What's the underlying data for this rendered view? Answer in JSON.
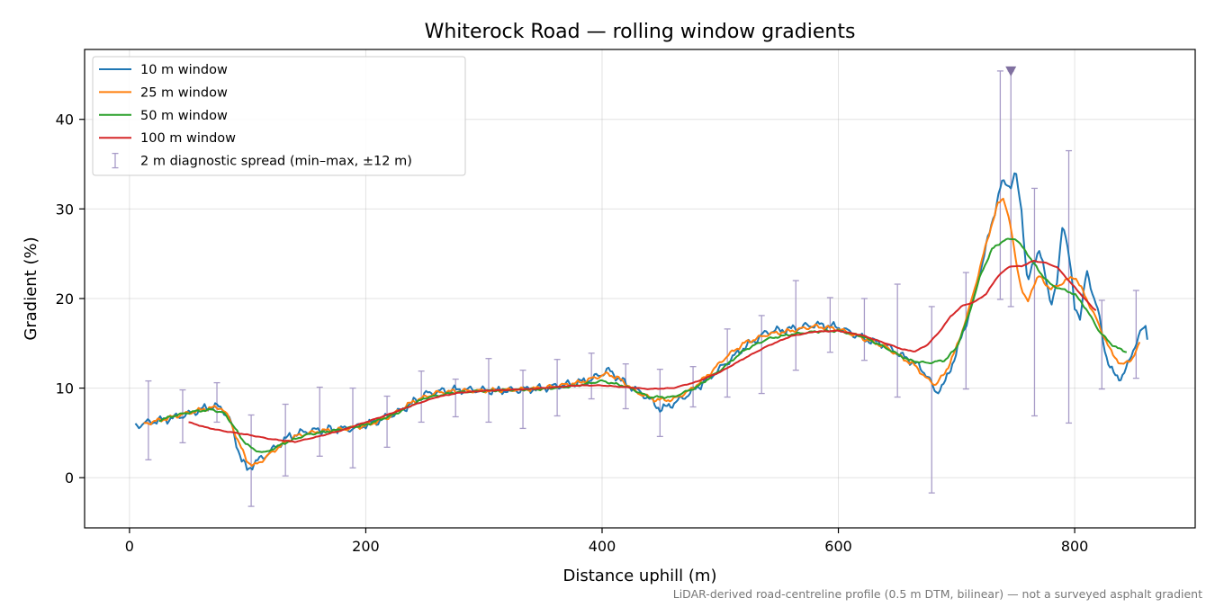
{
  "chart_data": {
    "type": "line",
    "title": "Whiterock Road — rolling window gradients",
    "xlabel": "Distance uphill (m)",
    "ylabel": "Gradient (%)",
    "xlim": [
      -38,
      902
    ],
    "ylim": [
      -5.6,
      47.8
    ],
    "x_ticks": [
      0,
      200,
      400,
      600,
      800
    ],
    "y_ticks": [
      0,
      10,
      20,
      30,
      40
    ],
    "grid": true,
    "legend_position": "upper-left",
    "footnote": "LiDAR-derived road-centreline profile (0.5 m DTM, bilinear) — not a surveyed asphalt gradient",
    "marker": {
      "x": 746,
      "y": 45.4,
      "symbol": "triangle-down",
      "color": "#8070a0"
    },
    "series": [
      {
        "name": "10 m window",
        "color": "#1f77b4",
        "noise": 0.55,
        "x": [
          5,
          20,
          35,
          50,
          60,
          70,
          78,
          85,
          90,
          95,
          100,
          105,
          110,
          120,
          135,
          150,
          170,
          190,
          210,
          230,
          250,
          270,
          290,
          310,
          330,
          350,
          370,
          390,
          405,
          420,
          435,
          450,
          465,
          480,
          500,
          520,
          540,
          560,
          580,
          600,
          620,
          640,
          655,
          665,
          675,
          682,
          690,
          700,
          710,
          720,
          730,
          738,
          742,
          746,
          750,
          755,
          760,
          765,
          770,
          775,
          780,
          785,
          790,
          795,
          800,
          805,
          810,
          815,
          820,
          825,
          830,
          835,
          840,
          845,
          850,
          855,
          860,
          862
        ],
        "y": [
          5.8,
          6.3,
          6.6,
          7.1,
          7.6,
          8.0,
          7.8,
          6.5,
          4.0,
          2.0,
          0.8,
          1.6,
          2.0,
          3.0,
          4.6,
          5.2,
          5.4,
          5.5,
          6.3,
          7.5,
          9.3,
          9.8,
          9.8,
          9.7,
          9.8,
          10.0,
          10.4,
          10.9,
          12.0,
          10.5,
          9.3,
          7.6,
          8.6,
          10.0,
          12.2,
          14.5,
          16.3,
          16.6,
          17.1,
          16.8,
          15.6,
          14.8,
          13.5,
          12.8,
          11.5,
          9.5,
          10.5,
          14.0,
          18.0,
          23.0,
          28.5,
          32.8,
          33.0,
          32.5,
          34.0,
          30.0,
          21.5,
          24.0,
          25.5,
          22.5,
          19.5,
          21.5,
          28.8,
          25.0,
          19.0,
          18.0,
          23.0,
          20.8,
          18.5,
          14.5,
          12.3,
          11.2,
          11.3,
          12.5,
          14.5,
          16.0,
          16.9,
          15.3
        ]
      },
      {
        "name": "25 m window",
        "color": "#ff7f0e",
        "noise": 0.3,
        "x": [
          12,
          25,
          40,
          55,
          68,
          78,
          85,
          92,
          100,
          105,
          112,
          125,
          140,
          160,
          180,
          200,
          220,
          240,
          260,
          280,
          300,
          320,
          340,
          360,
          380,
          395,
          405,
          415,
          430,
          445,
          460,
          475,
          490,
          505,
          520,
          540,
          560,
          580,
          600,
          620,
          640,
          655,
          665,
          675,
          682,
          690,
          700,
          710,
          720,
          728,
          735,
          740,
          745,
          750,
          755,
          760,
          765,
          770,
          780,
          790,
          800,
          810,
          820,
          830,
          840,
          850,
          855
        ],
        "y": [
          6.0,
          6.4,
          6.9,
          7.4,
          7.8,
          7.8,
          6.5,
          4.0,
          1.8,
          1.3,
          1.9,
          3.3,
          4.6,
          5.2,
          5.4,
          5.8,
          6.8,
          8.5,
          9.5,
          9.7,
          9.7,
          9.8,
          9.9,
          10.2,
          10.6,
          11.2,
          11.6,
          11.0,
          9.5,
          8.7,
          8.7,
          9.8,
          11.5,
          13.5,
          15.0,
          16.0,
          16.4,
          16.9,
          16.6,
          15.6,
          14.6,
          13.3,
          12.5,
          11.0,
          10.4,
          11.6,
          14.5,
          18.5,
          23.5,
          27.5,
          30.5,
          31.3,
          28.5,
          24.5,
          21.0,
          19.5,
          21.5,
          22.5,
          21.0,
          21.8,
          22.5,
          20.0,
          17.2,
          14.2,
          12.5,
          13.5,
          15.0
        ]
      },
      {
        "name": "50 m window",
        "color": "#2ca02c",
        "noise": 0.15,
        "x": [
          25,
          40,
          55,
          70,
          80,
          88,
          95,
          105,
          115,
          130,
          150,
          175,
          200,
          225,
          250,
          275,
          300,
          325,
          350,
          375,
          400,
          420,
          440,
          460,
          480,
          500,
          520,
          540,
          560,
          580,
          600,
          620,
          640,
          660,
          675,
          690,
          700,
          710,
          720,
          730,
          740,
          750,
          760,
          770,
          780,
          790,
          800,
          810,
          820,
          830,
          840,
          845
        ],
        "y": [
          6.4,
          7.0,
          7.4,
          7.6,
          7.2,
          5.8,
          4.3,
          3.1,
          2.8,
          3.8,
          4.8,
          5.3,
          5.9,
          7.1,
          8.9,
          9.5,
          9.7,
          9.8,
          9.9,
          10.2,
          10.8,
          10.2,
          9.0,
          9.0,
          10.1,
          12.0,
          14.2,
          15.5,
          16.0,
          16.3,
          16.4,
          15.8,
          14.5,
          13.1,
          12.8,
          13.1,
          14.5,
          18.0,
          22.5,
          25.5,
          26.5,
          26.7,
          25.0,
          23.0,
          21.5,
          21.0,
          20.5,
          18.8,
          16.5,
          15.0,
          14.2,
          14.0
        ]
      },
      {
        "name": "100 m window",
        "color": "#d62728",
        "noise": 0.05,
        "x": [
          50,
          65,
          80,
          100,
          120,
          140,
          160,
          180,
          200,
          220,
          240,
          260,
          280,
          300,
          320,
          340,
          360,
          380,
          400,
          420,
          440,
          460,
          480,
          500,
          520,
          540,
          560,
          580,
          600,
          620,
          640,
          655,
          665,
          675,
          685,
          695,
          705,
          715,
          725,
          735,
          745,
          755,
          765,
          775,
          785,
          795,
          805,
          815,
          818
        ],
        "y": [
          6.2,
          5.6,
          5.2,
          4.8,
          4.3,
          4.0,
          4.6,
          5.3,
          6.2,
          7.1,
          8.1,
          9.0,
          9.5,
          9.7,
          9.8,
          9.9,
          10.1,
          10.3,
          10.3,
          10.1,
          9.9,
          10.0,
          10.7,
          11.8,
          13.3,
          14.7,
          15.8,
          16.3,
          16.4,
          15.9,
          15.0,
          14.3,
          14.1,
          14.8,
          16.2,
          18.0,
          19.2,
          19.6,
          20.5,
          22.5,
          23.6,
          23.6,
          24.2,
          24.0,
          23.5,
          22.0,
          20.5,
          19.0,
          18.7
        ]
      }
    ],
    "errorbars": {
      "name": "2 m diagnostic spread (min–max, ±12 m)",
      "color": "#a89cc8",
      "points": [
        {
          "x": 16,
          "lo": 2.0,
          "hi": 10.8
        },
        {
          "x": 45,
          "lo": 3.9,
          "hi": 9.8
        },
        {
          "x": 74,
          "lo": 6.2,
          "hi": 10.6
        },
        {
          "x": 103,
          "lo": -3.2,
          "hi": 7.0
        },
        {
          "x": 132,
          "lo": 0.2,
          "hi": 8.2
        },
        {
          "x": 161,
          "lo": 2.4,
          "hi": 10.1
        },
        {
          "x": 189,
          "lo": 1.1,
          "hi": 10.0
        },
        {
          "x": 218,
          "lo": 3.4,
          "hi": 9.1
        },
        {
          "x": 247,
          "lo": 6.2,
          "hi": 11.9
        },
        {
          "x": 276,
          "lo": 6.8,
          "hi": 11.0
        },
        {
          "x": 304,
          "lo": 6.2,
          "hi": 13.3
        },
        {
          "x": 333,
          "lo": 5.5,
          "hi": 12.0
        },
        {
          "x": 362,
          "lo": 6.9,
          "hi": 13.2
        },
        {
          "x": 391,
          "lo": 8.8,
          "hi": 13.9
        },
        {
          "x": 420,
          "lo": 7.7,
          "hi": 12.7
        },
        {
          "x": 449,
          "lo": 4.6,
          "hi": 12.1
        },
        {
          "x": 477,
          "lo": 7.9,
          "hi": 12.4
        },
        {
          "x": 506,
          "lo": 9.0,
          "hi": 16.6
        },
        {
          "x": 535,
          "lo": 9.4,
          "hi": 18.1
        },
        {
          "x": 564,
          "lo": 12.0,
          "hi": 22.0
        },
        {
          "x": 593,
          "lo": 14.0,
          "hi": 20.1
        },
        {
          "x": 622,
          "lo": 13.1,
          "hi": 20.0
        },
        {
          "x": 650,
          "lo": 9.0,
          "hi": 21.6
        },
        {
          "x": 679,
          "lo": -1.7,
          "hi": 19.1
        },
        {
          "x": 708,
          "lo": 9.9,
          "hi": 22.9
        },
        {
          "x": 737,
          "lo": 19.9,
          "hi": 45.4
        },
        {
          "x": 746,
          "lo": 19.1,
          "hi": 45.4
        },
        {
          "x": 766,
          "lo": 6.9,
          "hi": 32.3
        },
        {
          "x": 795,
          "lo": 6.1,
          "hi": 36.5
        },
        {
          "x": 823,
          "lo": 9.9,
          "hi": 19.8
        },
        {
          "x": 852,
          "lo": 11.1,
          "hi": 20.9
        }
      ]
    }
  }
}
